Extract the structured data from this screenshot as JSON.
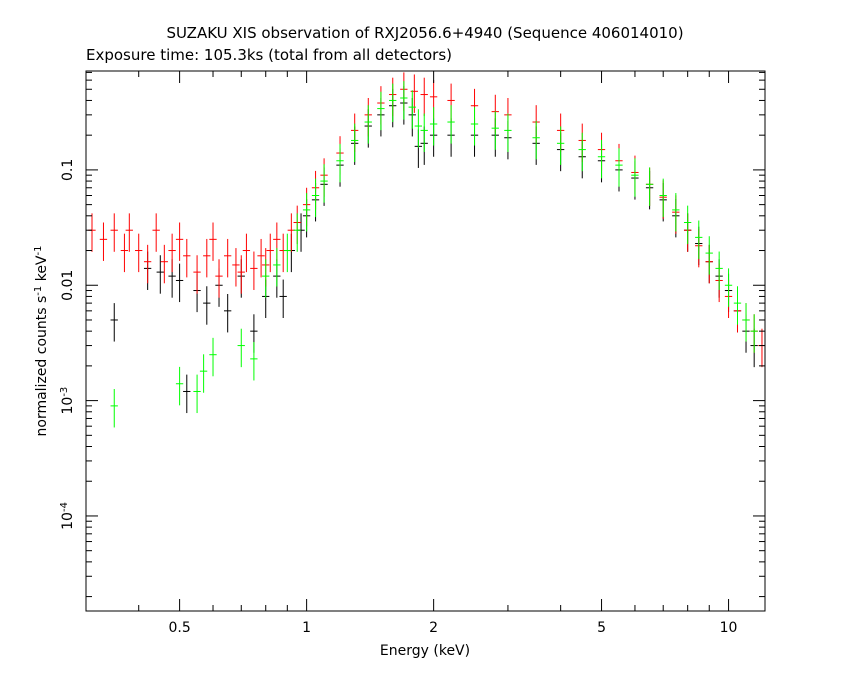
{
  "chart_data": {
    "type": "scatter",
    "title": "SUZAKU XIS observation of RXJ2056.6+4940 (Sequence 406014010)",
    "subtitle": "Exposure time: 105.3ks (total from all detectors)",
    "xlabel": "Energy (keV)",
    "ylabel": "normalized counts s^-1 keV^-1",
    "xscale": "log",
    "yscale": "log",
    "xlim": [
      0.3,
      12.2
    ],
    "ylim": [
      1.5e-05,
      0.72
    ],
    "x_ticks": [
      0.5,
      1,
      2,
      5,
      10
    ],
    "x_tick_labels": [
      "0.5",
      "1",
      "2",
      "5",
      "10"
    ],
    "y_ticks": [
      0.0001,
      0.001,
      0.01,
      0.1
    ],
    "y_tick_labels": [
      {
        "base": "10",
        "exp": "-4"
      },
      {
        "base": "10",
        "exp": "-3"
      },
      {
        "base": "0.01",
        "exp": ""
      },
      {
        "base": "0.1",
        "exp": ""
      }
    ],
    "grid": false,
    "legend": "none",
    "series": [
      {
        "color": "#000000",
        "points": [
          [
            0.35,
            0.005
          ],
          [
            0.42,
            0.014
          ],
          [
            0.45,
            0.013
          ],
          [
            0.48,
            0.012
          ],
          [
            0.5,
            0.011
          ],
          [
            0.52,
            0.0012
          ],
          [
            0.55,
            0.009
          ],
          [
            0.58,
            0.007
          ],
          [
            0.62,
            0.01
          ],
          [
            0.65,
            0.006
          ],
          [
            0.7,
            0.012
          ],
          [
            0.75,
            0.004
          ],
          [
            0.8,
            0.008
          ],
          [
            0.85,
            0.012
          ],
          [
            0.88,
            0.008
          ],
          [
            0.92,
            0.02
          ],
          [
            0.97,
            0.03
          ],
          [
            1.0,
            0.04
          ],
          [
            1.05,
            0.055
          ],
          [
            1.1,
            0.075
          ],
          [
            1.2,
            0.11
          ],
          [
            1.3,
            0.17
          ],
          [
            1.4,
            0.24
          ],
          [
            1.5,
            0.3
          ],
          [
            1.6,
            0.36
          ],
          [
            1.7,
            0.38
          ],
          [
            1.78,
            0.3
          ],
          [
            1.84,
            0.16
          ],
          [
            1.9,
            0.17
          ],
          [
            2.0,
            0.2
          ],
          [
            2.2,
            0.2
          ],
          [
            2.5,
            0.2
          ],
          [
            2.8,
            0.2
          ],
          [
            3.0,
            0.19
          ],
          [
            3.5,
            0.17
          ],
          [
            4.0,
            0.15
          ],
          [
            4.5,
            0.13
          ],
          [
            5.0,
            0.12
          ],
          [
            5.5,
            0.1
          ],
          [
            6.0,
            0.085
          ],
          [
            6.5,
            0.07
          ],
          [
            7.0,
            0.055
          ],
          [
            7.5,
            0.04
          ],
          [
            8.0,
            0.03
          ],
          [
            8.5,
            0.023
          ],
          [
            9.0,
            0.016
          ],
          [
            9.5,
            0.012
          ],
          [
            10.0,
            0.009
          ],
          [
            10.5,
            0.006
          ],
          [
            11.0,
            0.004
          ],
          [
            11.5,
            0.003
          ]
        ]
      },
      {
        "color": "#ff0000",
        "points": [
          [
            0.31,
            0.03
          ],
          [
            0.33,
            0.025
          ],
          [
            0.35,
            0.03
          ],
          [
            0.37,
            0.02
          ],
          [
            0.38,
            0.03
          ],
          [
            0.4,
            0.02
          ],
          [
            0.42,
            0.016
          ],
          [
            0.44,
            0.03
          ],
          [
            0.46,
            0.016
          ],
          [
            0.48,
            0.02
          ],
          [
            0.5,
            0.025
          ],
          [
            0.52,
            0.018
          ],
          [
            0.55,
            0.013
          ],
          [
            0.58,
            0.018
          ],
          [
            0.6,
            0.025
          ],
          [
            0.62,
            0.012
          ],
          [
            0.65,
            0.018
          ],
          [
            0.68,
            0.015
          ],
          [
            0.7,
            0.013
          ],
          [
            0.72,
            0.02
          ],
          [
            0.75,
            0.014
          ],
          [
            0.78,
            0.018
          ],
          [
            0.8,
            0.015
          ],
          [
            0.82,
            0.02
          ],
          [
            0.85,
            0.025
          ],
          [
            0.88,
            0.02
          ],
          [
            0.92,
            0.03
          ],
          [
            0.95,
            0.035
          ],
          [
            1.0,
            0.05
          ],
          [
            1.05,
            0.07
          ],
          [
            1.1,
            0.09
          ],
          [
            1.2,
            0.14
          ],
          [
            1.3,
            0.22
          ],
          [
            1.4,
            0.3
          ],
          [
            1.5,
            0.38
          ],
          [
            1.6,
            0.45
          ],
          [
            1.7,
            0.5
          ],
          [
            1.8,
            0.48
          ],
          [
            1.9,
            0.45
          ],
          [
            2.0,
            0.43
          ],
          [
            2.2,
            0.4
          ],
          [
            2.5,
            0.36
          ],
          [
            2.8,
            0.32
          ],
          [
            3.0,
            0.3
          ],
          [
            3.5,
            0.26
          ],
          [
            4.0,
            0.22
          ],
          [
            4.5,
            0.18
          ],
          [
            5.0,
            0.15
          ],
          [
            5.5,
            0.12
          ],
          [
            6.0,
            0.095
          ],
          [
            6.5,
            0.075
          ],
          [
            7.0,
            0.058
          ],
          [
            7.5,
            0.043
          ],
          [
            8.0,
            0.03
          ],
          [
            8.5,
            0.022
          ],
          [
            9.0,
            0.016
          ],
          [
            9.5,
            0.011
          ],
          [
            10.0,
            0.008
          ],
          [
            10.5,
            0.006
          ],
          [
            11.0,
            0.005
          ],
          [
            11.5,
            0.004
          ],
          [
            12.0,
            0.003
          ]
        ]
      },
      {
        "color": "#00ff00",
        "points": [
          [
            0.35,
            0.0009
          ],
          [
            0.5,
            0.0014
          ],
          [
            0.55,
            0.0012
          ],
          [
            0.57,
            0.0018
          ],
          [
            0.6,
            0.0025
          ],
          [
            0.7,
            0.003
          ],
          [
            0.75,
            0.0023
          ],
          [
            0.8,
            0.012
          ],
          [
            0.85,
            0.015
          ],
          [
            0.9,
            0.02
          ],
          [
            0.95,
            0.03
          ],
          [
            1.0,
            0.045
          ],
          [
            1.05,
            0.06
          ],
          [
            1.1,
            0.08
          ],
          [
            1.2,
            0.12
          ],
          [
            1.3,
            0.18
          ],
          [
            1.4,
            0.26
          ],
          [
            1.5,
            0.34
          ],
          [
            1.6,
            0.4
          ],
          [
            1.7,
            0.42
          ],
          [
            1.78,
            0.35
          ],
          [
            1.84,
            0.24
          ],
          [
            1.9,
            0.22
          ],
          [
            2.0,
            0.25
          ],
          [
            2.2,
            0.26
          ],
          [
            2.5,
            0.25
          ],
          [
            2.8,
            0.23
          ],
          [
            3.0,
            0.22
          ],
          [
            3.5,
            0.19
          ],
          [
            4.0,
            0.17
          ],
          [
            4.5,
            0.15
          ],
          [
            5.0,
            0.13
          ],
          [
            5.5,
            0.11
          ],
          [
            6.0,
            0.09
          ],
          [
            6.5,
            0.075
          ],
          [
            7.0,
            0.06
          ],
          [
            7.5,
            0.045
          ],
          [
            8.0,
            0.035
          ],
          [
            8.5,
            0.026
          ],
          [
            9.0,
            0.019
          ],
          [
            9.5,
            0.014
          ],
          [
            10.0,
            0.01
          ],
          [
            10.5,
            0.007
          ],
          [
            11.0,
            0.005
          ],
          [
            11.5,
            0.004
          ]
        ]
      }
    ]
  }
}
